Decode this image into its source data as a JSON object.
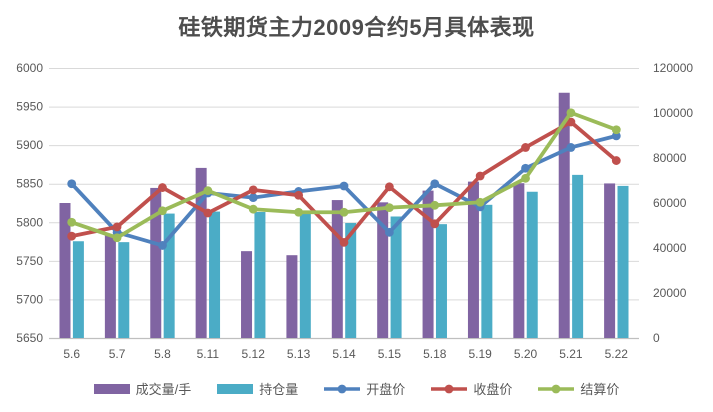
{
  "title": "硅铁期货主力2009合约5月具体表现",
  "style": {
    "text_color": "#595959",
    "title_color": "#4d4d4d",
    "grid_color": "#d9d9d9",
    "axis_line_color": "#bfbfbf",
    "background": "#ffffff"
  },
  "chart_data": {
    "type": "bar",
    "subtype": "combo bar+line, dual axis",
    "title": "硅铁期货主力2009合约5月具体表现",
    "xlabel": "",
    "ylabel_left": "",
    "ylabel_right": "",
    "grid": true,
    "legend_position": "bottom",
    "categories": [
      "5.6",
      "5.7",
      "5.8",
      "5.11",
      "5.12",
      "5.13",
      "5.14",
      "5.15",
      "5.18",
      "5.19",
      "5.20",
      "5.21",
      "5.22"
    ],
    "left_axis": {
      "min": 5650,
      "max": 6000,
      "step": 50,
      "ticks": [
        "6000",
        "5950",
        "5900",
        "5850",
        "5800",
        "5750",
        "5700",
        "5650"
      ]
    },
    "right_axis": {
      "min": 0,
      "max": 120000,
      "step": 20000,
      "ticks": [
        "120000",
        "100000",
        "80000",
        "60000",
        "40000",
        "20000",
        "0"
      ]
    },
    "bar_series": [
      {
        "name": "成交量/手",
        "color": "#8064A2",
        "axis": "right",
        "values": [
          60000,
          46000,
          66700,
          75600,
          38600,
          36800,
          61300,
          60300,
          65500,
          69500,
          68800,
          109000,
          68700
        ]
      },
      {
        "name": "持仓量",
        "color": "#4BACC6",
        "axis": "right",
        "values": [
          43000,
          42600,
          55300,
          56200,
          56000,
          55400,
          51100,
          54000,
          50600,
          59200,
          65000,
          72500,
          67600
        ]
      }
    ],
    "line_series": [
      {
        "name": "开盘价",
        "color": "#4F81BD",
        "axis": "left",
        "values": [
          5850,
          5787,
          5770,
          5838,
          5832,
          5840,
          5847,
          5787,
          5850,
          5820,
          5870,
          5897,
          5912
        ]
      },
      {
        "name": "收盘价",
        "color": "#C0504D",
        "axis": "left",
        "values": [
          5782,
          5794,
          5845,
          5812,
          5842,
          5835,
          5774,
          5846,
          5798,
          5860,
          5897,
          5930,
          5880
        ]
      },
      {
        "name": "结算价",
        "color": "#9BBB59",
        "axis": "left",
        "values": [
          5800,
          5780,
          5815,
          5841,
          5817,
          5813,
          5813,
          5819,
          5822,
          5826,
          5857,
          5942,
          5920
        ]
      }
    ]
  }
}
